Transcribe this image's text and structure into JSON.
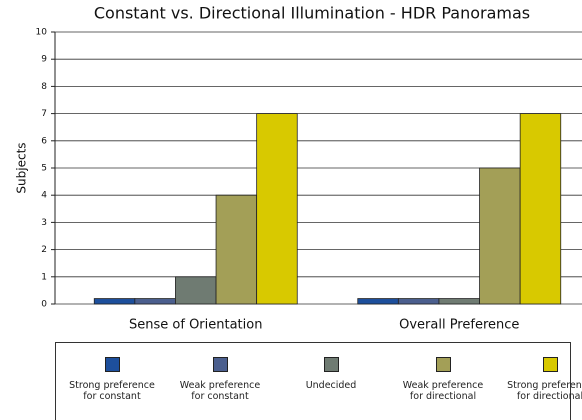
{
  "chart_data": {
    "type": "bar",
    "title": "Constant vs. Directional Illumination - HDR Panoramas",
    "y_label": "Subjects",
    "categories": [
      "Sense of Orientation",
      "Overall Preference"
    ],
    "series": [
      {
        "name": "Strong preference for constant",
        "color": "#1d4f9c",
        "values": [
          0.2,
          0.2
        ]
      },
      {
        "name": "Weak preference for constant",
        "color": "#4b5f8e",
        "values": [
          0.2,
          0.2
        ]
      },
      {
        "name": "Undecided",
        "color": "#6f7b72",
        "values": [
          1,
          0.2
        ]
      },
      {
        "name": "Weak preference for directional",
        "color": "#a39f57",
        "values": [
          4,
          5
        ]
      },
      {
        "name": "Strong preference for directional",
        "color": "#d8c900",
        "values": [
          7,
          7
        ]
      }
    ],
    "ylim": [
      0,
      10
    ],
    "yticks": [
      0,
      1,
      2,
      3,
      4,
      5,
      6,
      7,
      8,
      9,
      10
    ],
    "grid": true
  }
}
